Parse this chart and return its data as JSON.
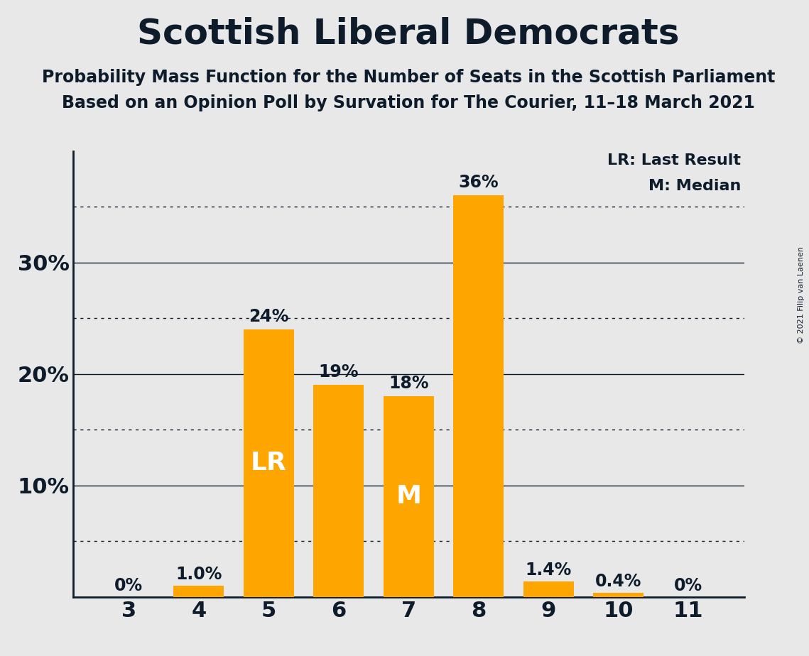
{
  "title": "Scottish Liberal Democrats",
  "subtitle1": "Probability Mass Function for the Number of Seats in the Scottish Parliament",
  "subtitle2": "Based on an Opinion Poll by Survation for The Courier, 11–18 March 2021",
  "copyright": "© 2021 Filip van Laenen",
  "categories": [
    3,
    4,
    5,
    6,
    7,
    8,
    9,
    10,
    11
  ],
  "values": [
    0,
    1.0,
    24,
    19,
    18,
    36,
    1.4,
    0.4,
    0
  ],
  "bar_color": "#FFA500",
  "background_color": "#E8E8E8",
  "text_color": "#0D1B2A",
  "ylim": [
    0,
    40
  ],
  "lr_seat": 5,
  "median_seat": 7,
  "label_values": [
    "0%",
    "1.0%",
    "24%",
    "19%",
    "18%",
    "36%",
    "1.4%",
    "0.4%",
    "0%"
  ],
  "dotted_lines": [
    5,
    15,
    25,
    35
  ],
  "solid_lines": [
    10,
    20,
    30
  ],
  "legend_text1": "LR: Last Result",
  "legend_text2": "M: Median",
  "title_fontsize": 36,
  "subtitle_fontsize": 17,
  "tick_fontsize": 22,
  "label_fontsize": 17,
  "lr_m_fontsize": 26
}
